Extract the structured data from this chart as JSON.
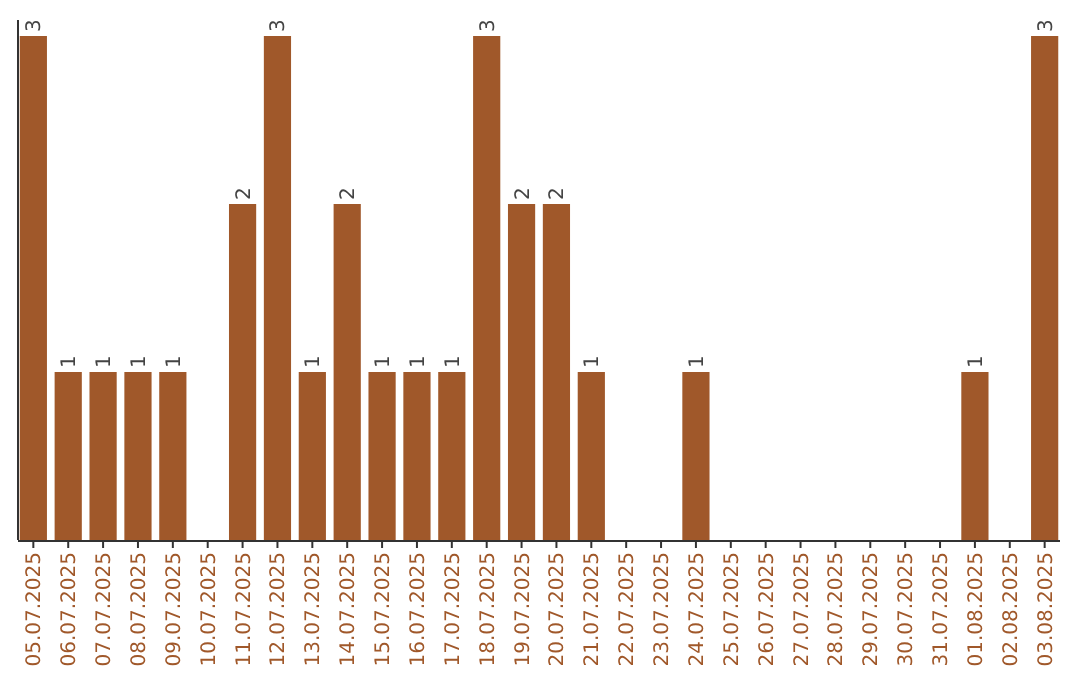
{
  "chart_data": {
    "type": "bar",
    "categories": [
      "05.07.2025",
      "06.07.2025",
      "07.07.2025",
      "08.07.2025",
      "09.07.2025",
      "10.07.2025",
      "11.07.2025",
      "12.07.2025",
      "13.07.2025",
      "14.07.2025",
      "15.07.2025",
      "16.07.2025",
      "17.07.2025",
      "18.07.2025",
      "19.07.2025",
      "20.07.2025",
      "21.07.2025",
      "22.07.2025",
      "23.07.2025",
      "24.07.2025",
      "25.07.2025",
      "26.07.2025",
      "27.07.2025",
      "28.07.2025",
      "29.07.2025",
      "30.07.2025",
      "31.07.2025",
      "01.08.2025",
      "02.08.2025",
      "03.08.2025"
    ],
    "values": [
      3,
      1,
      1,
      1,
      1,
      0,
      2,
      3,
      1,
      2,
      1,
      1,
      1,
      3,
      2,
      2,
      1,
      0,
      0,
      1,
      0,
      0,
      0,
      0,
      0,
      0,
      0,
      1,
      0,
      3
    ],
    "value_labels": [
      "3",
      "1",
      "1",
      "1",
      "1",
      null,
      "2",
      "3",
      "1",
      "2",
      "1",
      "1",
      "1",
      "3",
      "2",
      "2",
      "1",
      null,
      null,
      "1",
      null,
      null,
      null,
      null,
      null,
      null,
      null,
      "1",
      null,
      "3"
    ],
    "color": "#a0582a"
  }
}
